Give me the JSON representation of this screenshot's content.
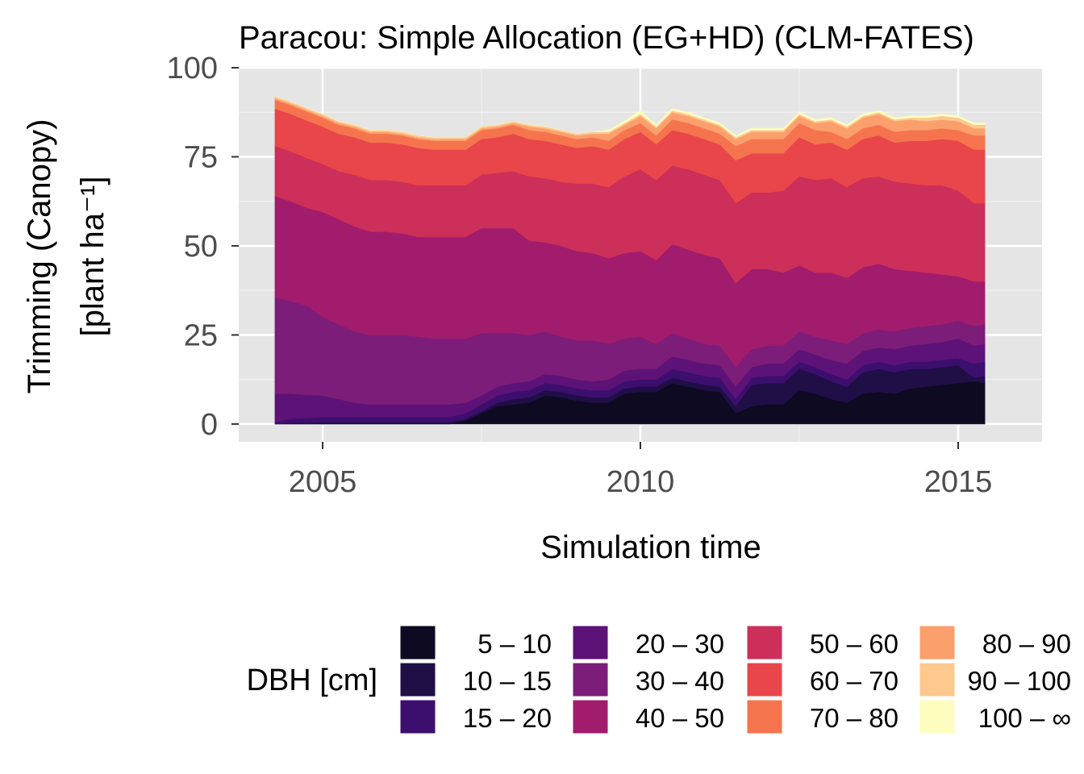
{
  "chart_data": {
    "type": "area",
    "stacked": true,
    "title": "Paracou: Simple Allocation (EG+HD) (CLM-FATES)",
    "xlabel": "Simulation time",
    "ylabel": "Trimming (Canopy)",
    "ylabel_unit": "[plant ha⁻¹]",
    "xlim": [
      2003.68,
      2016.32
    ],
    "ylim": [
      -5,
      100
    ],
    "x_ticks": [
      2005,
      2010,
      2015
    ],
    "x_tick_labels": [
      "2005",
      "2010",
      "2015"
    ],
    "y_ticks": [
      0,
      25,
      50,
      75,
      100
    ],
    "y_tick_labels": [
      "0",
      "25",
      "50",
      "75",
      "100"
    ],
    "grid": true,
    "panel_background": "#e5e5e5",
    "legend_position": "bottom",
    "legend_title": "DBH [cm]",
    "x": [
      2004.25,
      2004.5,
      2004.75,
      2005.0,
      2005.25,
      2005.5,
      2005.75,
      2006.0,
      2006.25,
      2006.5,
      2006.75,
      2007.0,
      2007.25,
      2007.5,
      2007.75,
      2008.0,
      2008.25,
      2008.5,
      2008.75,
      2009.0,
      2009.25,
      2009.5,
      2009.75,
      2010.0,
      2010.25,
      2010.5,
      2010.75,
      2011.0,
      2011.25,
      2011.5,
      2011.75,
      2012.0,
      2012.25,
      2012.5,
      2012.75,
      2013.0,
      2013.25,
      2013.5,
      2013.75,
      2014.0,
      2014.25,
      2014.5,
      2014.75,
      2015.0,
      2015.25,
      2015.42
    ],
    "series": [
      {
        "name": "5 – 10",
        "color": "#0d0a21",
        "values": [
          0,
          0,
          0,
          0,
          0,
          0,
          0,
          0,
          0,
          0,
          0,
          0,
          1,
          3,
          5,
          5.5,
          6,
          8,
          7.5,
          6.5,
          6,
          6,
          8.5,
          9,
          9,
          11.5,
          10.5,
          9.5,
          9,
          3,
          5,
          5.5,
          5.5,
          9.5,
          8.5,
          7,
          6,
          8.5,
          9,
          8.5,
          10,
          10.5,
          11,
          11.5,
          12,
          11.5
        ]
      },
      {
        "name": "10 – 15",
        "color": "#200e46",
        "values": [
          0,
          0.3,
          0.4,
          0.5,
          0.5,
          0.5,
          0.5,
          0.5,
          0.5,
          0.5,
          0.5,
          0.5,
          0.5,
          0.5,
          1,
          1.5,
          1.5,
          1.5,
          1.5,
          1.5,
          1.5,
          1.5,
          1.5,
          1.5,
          1.5,
          1.5,
          1.5,
          1.5,
          1.5,
          2,
          6,
          6,
          6,
          6,
          5.5,
          5,
          4.5,
          6,
          6.5,
          6,
          5.5,
          5,
          5,
          5,
          1,
          2
        ]
      },
      {
        "name": "15 – 20",
        "color": "#3c0f6e",
        "values": [
          0.5,
          1.2,
          1.3,
          1.5,
          1.5,
          1.5,
          1.5,
          1.5,
          1.5,
          1.5,
          1.5,
          1.5,
          1.5,
          2,
          2,
          2,
          2,
          2,
          2,
          2,
          2,
          2,
          2,
          2,
          2,
          2.5,
          2.5,
          2.5,
          2.5,
          2,
          2,
          2,
          2,
          2,
          2,
          2,
          2,
          2,
          2,
          2,
          2,
          2,
          2,
          2,
          4,
          4
        ]
      },
      {
        "name": "20 – 30",
        "color": "#5d1277",
        "values": [
          8,
          7,
          6.5,
          6,
          5,
          4,
          3.5,
          3.5,
          3.5,
          3.5,
          3.5,
          3.5,
          3,
          2.5,
          2.5,
          2.5,
          2.5,
          2.5,
          2.5,
          2.5,
          2.5,
          3,
          3,
          3,
          3,
          3.5,
          3.5,
          3.5,
          3.5,
          3.5,
          3,
          3.5,
          3.5,
          3.5,
          3.5,
          4,
          4.5,
          4,
          4,
          4.5,
          4.5,
          5,
          5,
          5.5,
          5,
          5
        ]
      },
      {
        "name": "30 – 40",
        "color": "#7c1d7a",
        "values": [
          27,
          26,
          25,
          22,
          21,
          20,
          19.5,
          19.5,
          19.5,
          19,
          18.5,
          18.5,
          18,
          17.5,
          15,
          14,
          13,
          12,
          11,
          11,
          11.5,
          10,
          9,
          9,
          7,
          6.5,
          6,
          5.5,
          5.5,
          5.5,
          5,
          5,
          5,
          5,
          5,
          5.5,
          5.5,
          5,
          5,
          5,
          5,
          5,
          5,
          5,
          5.5,
          5.5
        ]
      },
      {
        "name": "40 – 50",
        "color": "#a11c6c",
        "values": [
          28.5,
          28,
          27.5,
          29.5,
          29.5,
          29.5,
          29,
          29,
          28.5,
          28,
          28.5,
          28.5,
          28.5,
          29.5,
          29.5,
          29.5,
          26.5,
          25,
          25.5,
          25,
          24.5,
          24,
          24,
          24,
          23.5,
          25,
          25,
          25,
          24.5,
          23.5,
          22.5,
          21.5,
          20.5,
          18.5,
          18,
          19,
          18.5,
          18.5,
          18.5,
          17.5,
          16,
          15,
          14,
          12.5,
          12.5,
          12
        ]
      },
      {
        "name": "50 – 60",
        "color": "#cc2f5a",
        "values": [
          14,
          14,
          14,
          13.5,
          13.5,
          14.5,
          14.5,
          14.5,
          14.5,
          14.5,
          14.5,
          14.5,
          14.5,
          15,
          15.5,
          16,
          18,
          18,
          18,
          19,
          19.5,
          20,
          21.5,
          23,
          22.5,
          22,
          22.5,
          22.5,
          22,
          22.5,
          21.5,
          21.5,
          23,
          25,
          26,
          26.5,
          25.5,
          25,
          24.5,
          24.5,
          24.5,
          24.5,
          25,
          24,
          22,
          22
        ]
      },
      {
        "name": "60 – 70",
        "color": "#e8464a",
        "values": [
          10.5,
          10.5,
          10.5,
          10.5,
          10.5,
          10.5,
          10.5,
          10.5,
          10.5,
          10.5,
          10,
          10,
          10,
          10,
          10,
          10.5,
          10.5,
          10.5,
          10.5,
          10,
          10.5,
          10.5,
          10.5,
          10.5,
          10,
          10,
          10,
          10,
          10,
          12,
          11,
          11,
          10.5,
          11,
          10,
          10,
          10.5,
          11,
          11.5,
          11,
          12,
          12.5,
          13,
          14,
          15,
          15
        ]
      },
      {
        "name": "70 – 80",
        "color": "#f5744e",
        "values": [
          2.5,
          2.5,
          2.5,
          2.5,
          2.5,
          2.5,
          2.5,
          2.5,
          2.5,
          2.5,
          2.5,
          2.5,
          2.5,
          2.5,
          2.5,
          2.5,
          2.5,
          2.5,
          2.5,
          2.5,
          2.5,
          2.5,
          2.5,
          2.5,
          2.5,
          3,
          3,
          3,
          3,
          4,
          4,
          4,
          4,
          4,
          4,
          3,
          3,
          3,
          3,
          3,
          3,
          3,
          3,
          3,
          4,
          4
        ]
      },
      {
        "name": "80 – 90",
        "color": "#fb9f6d",
        "values": [
          0.5,
          0.5,
          0.5,
          0.5,
          0.5,
          0.5,
          0.5,
          0.5,
          0.5,
          0.5,
          0.5,
          0.5,
          0.5,
          0.5,
          0.5,
          0.5,
          1,
          1,
          1,
          1,
          1,
          2,
          1.5,
          2,
          2,
          2,
          2,
          2,
          2,
          2,
          2,
          2,
          2,
          2,
          2,
          3,
          3,
          3,
          3,
          3,
          3,
          2.5,
          2.5,
          2.5,
          2,
          2
        ]
      },
      {
        "name": "90 – 100",
        "color": "#fdc98f",
        "values": [
          0.5,
          0.5,
          0.5,
          0.5,
          0.5,
          0.5,
          0.5,
          0.5,
          0.5,
          0.5,
          0.5,
          0.5,
          0.5,
          0.5,
          0.5,
          0.5,
          0.5,
          0.5,
          0.5,
          0.5,
          0.5,
          0.5,
          0.5,
          0.5,
          0.5,
          0.5,
          0.5,
          0.5,
          0.5,
          0.5,
          0.5,
          0.5,
          0.5,
          0.5,
          0.5,
          0.5,
          0.5,
          0.5,
          0.5,
          0.5,
          0.5,
          1,
          1,
          1,
          1,
          1
        ]
      },
      {
        "name": "100 – ∞",
        "color": "#fcfdbf",
        "values": [
          0,
          0,
          0,
          0,
          0,
          0,
          0,
          0,
          0,
          0,
          0,
          0,
          0,
          0,
          0,
          0,
          0,
          0,
          0,
          0,
          0,
          0.5,
          0.5,
          1,
          0.5,
          0.5,
          0.5,
          0.5,
          0.5,
          0.5,
          0.5,
          0.5,
          0.5,
          0.5,
          0.5,
          0.5,
          0.5,
          0.5,
          0.5,
          0.5,
          0.5,
          0.5,
          0.5,
          0.5,
          0.5,
          0.5
        ]
      }
    ]
  }
}
